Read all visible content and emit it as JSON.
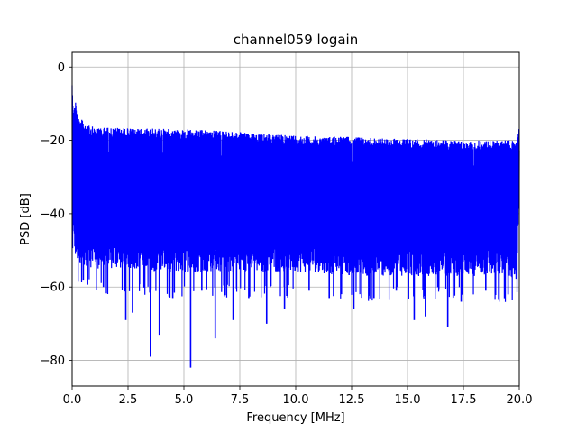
{
  "chart_data": {
    "type": "line",
    "title": "channel059 logain",
    "xlabel": "Frequency [MHz]",
    "ylabel": "PSD [dB]",
    "xlim": [
      0,
      20
    ],
    "ylim": [
      -87,
      4
    ],
    "grid": true,
    "line_color": "#0000ff",
    "x_ticks": [
      0.0,
      2.5,
      5.0,
      7.5,
      10.0,
      12.5,
      15.0,
      17.5,
      20.0
    ],
    "x_tick_labels": [
      "0.0",
      "2.5",
      "5.0",
      "7.5",
      "10.0",
      "12.5",
      "15.0",
      "17.5",
      "20.0"
    ],
    "y_ticks": [
      0,
      -20,
      -40,
      -60,
      -80
    ],
    "y_tick_labels": [
      "0",
      "−20",
      "−40",
      "−60",
      "−80"
    ],
    "series": [
      {
        "x": [
          0.0,
          0.05,
          0.1,
          0.15,
          0.2,
          0.3,
          0.5,
          1.0,
          2.0,
          3.0,
          4.0,
          5.0,
          6.0,
          7.0,
          8.0,
          9.0,
          10.0,
          11.0,
          12.0,
          13.0,
          14.0,
          15.0,
          16.0,
          17.0,
          18.0,
          19.0,
          19.9,
          20.0
        ],
        "upper": [
          -3,
          -12,
          -11,
          -8,
          -12,
          -13,
          -15,
          -16.5,
          -16.5,
          -16.8,
          -16.8,
          -17,
          -17.2,
          -17.5,
          -18,
          -18.5,
          -18.5,
          -19,
          -19,
          -19.2,
          -19.5,
          -19.5,
          -19.8,
          -20,
          -20,
          -20,
          -20,
          -16
        ],
        "lower": [
          -40,
          -48,
          -50,
          -52,
          -53,
          -54,
          -54,
          -55,
          -55,
          -55,
          -56,
          -56,
          -56,
          -56,
          -56,
          -56,
          -56,
          -56,
          -57,
          -57,
          -57,
          -57,
          -57,
          -57,
          -57,
          -57,
          -58,
          -30
        ]
      }
    ],
    "dips": [
      {
        "x": 0.5,
        "y": -58
      },
      {
        "x": 1.4,
        "y": -60
      },
      {
        "x": 2.4,
        "y": -69
      },
      {
        "x": 2.7,
        "y": -67
      },
      {
        "x": 3.5,
        "y": -79
      },
      {
        "x": 3.9,
        "y": -73
      },
      {
        "x": 4.5,
        "y": -63
      },
      {
        "x": 5.3,
        "y": -82
      },
      {
        "x": 5.8,
        "y": -61
      },
      {
        "x": 6.4,
        "y": -74
      },
      {
        "x": 7.2,
        "y": -69
      },
      {
        "x": 7.9,
        "y": -63
      },
      {
        "x": 8.7,
        "y": -70
      },
      {
        "x": 9.5,
        "y": -66
      },
      {
        "x": 10.6,
        "y": -61
      },
      {
        "x": 11.5,
        "y": -63
      },
      {
        "x": 12.6,
        "y": -66
      },
      {
        "x": 13.5,
        "y": -63
      },
      {
        "x": 14.5,
        "y": -61
      },
      {
        "x": 15.3,
        "y": -69
      },
      {
        "x": 15.8,
        "y": -68
      },
      {
        "x": 16.8,
        "y": -71
      },
      {
        "x": 17.4,
        "y": -64
      },
      {
        "x": 18.5,
        "y": -61
      },
      {
        "x": 19.5,
        "y": -62
      }
    ]
  }
}
